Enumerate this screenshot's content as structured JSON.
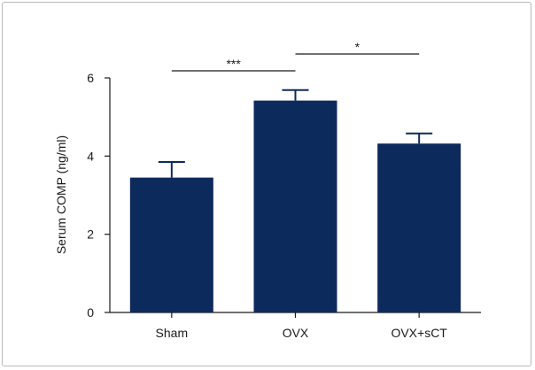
{
  "chart_data": {
    "type": "bar",
    "categories": [
      "Sham",
      "OVX",
      "OVX+sCT"
    ],
    "values": [
      3.45,
      5.42,
      4.32
    ],
    "errors": [
      0.4,
      0.27,
      0.26
    ],
    "ylabel": "Serum COMP (ng/ml)",
    "ylim": [
      0,
      6
    ],
    "yticks": [
      "0",
      "2",
      "4",
      "6"
    ],
    "bar_color": "#0d2a5c",
    "significance": [
      {
        "from": "Sham",
        "to": "OVX",
        "label": "***"
      },
      {
        "from": "OVX",
        "to": "OVX+sCT",
        "label": "*"
      }
    ],
    "grid": false,
    "legend": "none"
  }
}
